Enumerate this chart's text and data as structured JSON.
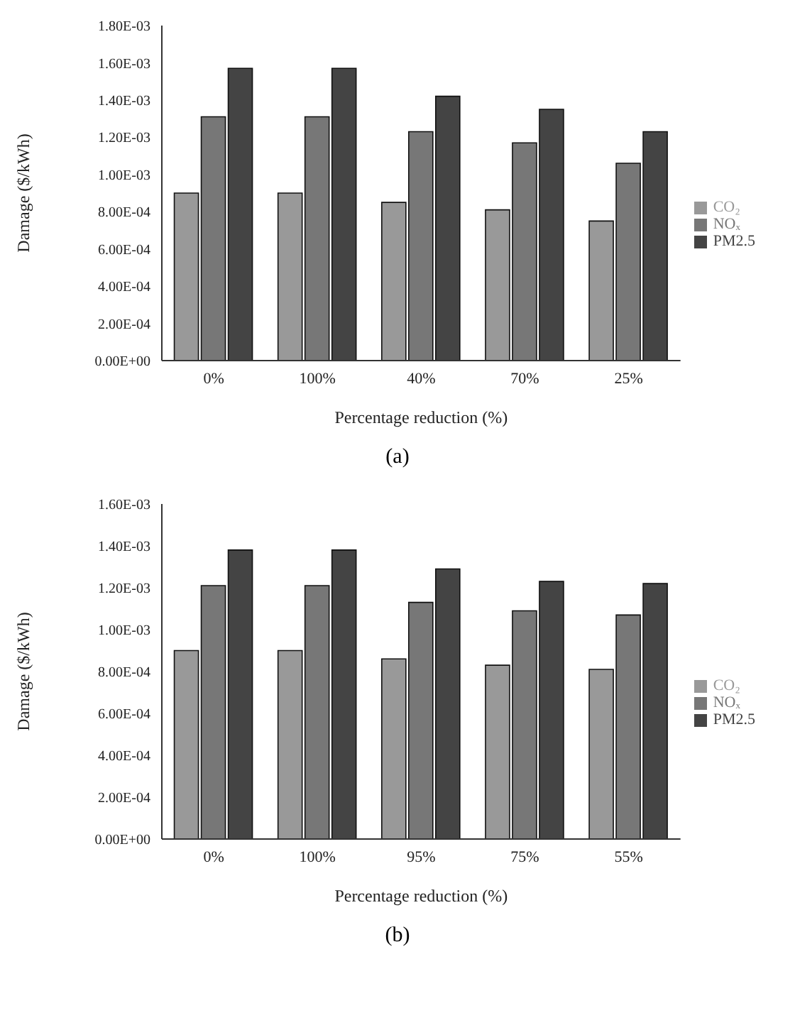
{
  "chart_data": [
    {
      "type": "bar",
      "xlabel": "Percentage reduction (%)",
      "ylabel": "Damage ($/kWh)",
      "categories": [
        "0%",
        "100%",
        "40%",
        "70%",
        "25%"
      ],
      "series": [
        {
          "name": "CO₂",
          "color": "#999999",
          "values": [
            0.0009,
            0.0009,
            0.00085,
            0.00081,
            0.00075
          ]
        },
        {
          "name": "NOₓ",
          "color": "#777777",
          "values": [
            0.00131,
            0.00131,
            0.00123,
            0.00117,
            0.00106
          ]
        },
        {
          "name": "PM2.5",
          "color": "#444444",
          "values": [
            0.00157,
            0.00157,
            0.00142,
            0.00135,
            0.00123
          ]
        }
      ],
      "ylim": [
        0,
        0.0018
      ],
      "yticks": [
        {
          "value": 0,
          "label": "0.00E+00"
        },
        {
          "value": 0.0002,
          "label": "2.00E-04"
        },
        {
          "value": 0.0004,
          "label": "4.00E-04"
        },
        {
          "value": 0.0006,
          "label": "6.00E-04"
        },
        {
          "value": 0.0008,
          "label": "8.00E-04"
        },
        {
          "value": 0.001,
          "label": "1.00E-03"
        },
        {
          "value": 0.0012,
          "label": "1.20E-03"
        },
        {
          "value": 0.0014,
          "label": "1.40E-03"
        },
        {
          "value": 0.0016,
          "label": "1.60E-03"
        },
        {
          "value": 0.0018,
          "label": "1.80E-03"
        }
      ],
      "legend": "right",
      "annotations": [
        "(a)"
      ]
    },
    {
      "type": "bar",
      "xlabel": "Percentage reduction (%)",
      "ylabel": "Damage ($/kWh)",
      "categories": [
        "0%",
        "100%",
        "95%",
        "75%",
        "55%"
      ],
      "series": [
        {
          "name": "CO₂",
          "color": "#999999",
          "values": [
            0.0009,
            0.0009,
            0.00086,
            0.00083,
            0.00081
          ]
        },
        {
          "name": "NOₓ",
          "color": "#777777",
          "values": [
            0.00121,
            0.00121,
            0.00113,
            0.00109,
            0.00107
          ]
        },
        {
          "name": "PM2.5",
          "color": "#444444",
          "values": [
            0.00138,
            0.00138,
            0.00129,
            0.00123,
            0.00122
          ]
        }
      ],
      "ylim": [
        0,
        0.0016
      ],
      "yticks": [
        {
          "value": 0,
          "label": "0.00E+00"
        },
        {
          "value": 0.0002,
          "label": "2.00E-04"
        },
        {
          "value": 0.0004,
          "label": "4.00E-04"
        },
        {
          "value": 0.0006,
          "label": "6.00E-04"
        },
        {
          "value": 0.0008,
          "label": "8.00E-04"
        },
        {
          "value": 0.001,
          "label": "1.00E-03"
        },
        {
          "value": 0.0012,
          "label": "1.20E-03"
        },
        {
          "value": 0.0014,
          "label": "1.40E-03"
        },
        {
          "value": 0.0016,
          "label": "1.60E-03"
        }
      ],
      "legend": "right",
      "annotations": [
        "(b)"
      ]
    }
  ]
}
